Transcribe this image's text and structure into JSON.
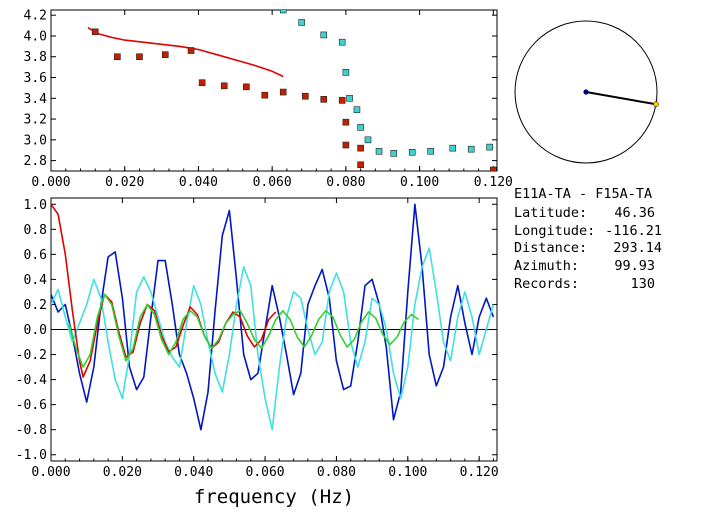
{
  "info": {
    "title": "E11A-TA - F15A-TA",
    "lines": [
      {
        "label": "Latitude:",
        "value": "46.36"
      },
      {
        "label": "Longitude:",
        "value": "-116.21"
      },
      {
        "label": "Distance:",
        "value": "293.14"
      },
      {
        "label": "Azimuth:",
        "value": "99.93"
      },
      {
        "label": "Records:",
        "value": "130"
      }
    ]
  },
  "compass": {
    "azimuth_deg": 99.93,
    "center_color": "#000080",
    "tip_color": "#f0d000"
  },
  "chart_data": [
    {
      "type": "scatter",
      "xlabel": "",
      "ylabel": "",
      "xlim": [
        0.0,
        0.121
      ],
      "ylim": [
        2.7,
        4.25
      ],
      "xticks": [
        "0.000",
        "0.020",
        "0.040",
        "0.060",
        "0.080",
        "0.100",
        "0.120"
      ],
      "yticks": [
        "2.8",
        "3.0",
        "3.2",
        "3.4",
        "3.6",
        "3.8",
        "4.0",
        "4.2"
      ],
      "series": [
        {
          "kind": "line",
          "color": "#e00000",
          "points": [
            [
              0.01,
              4.08
            ],
            [
              0.013,
              4.02
            ],
            [
              0.016,
              3.99
            ],
            [
              0.02,
              3.96
            ],
            [
              0.025,
              3.94
            ],
            [
              0.03,
              3.92
            ],
            [
              0.035,
              3.9
            ],
            [
              0.04,
              3.87
            ],
            [
              0.045,
              3.82
            ],
            [
              0.05,
              3.77
            ],
            [
              0.055,
              3.72
            ],
            [
              0.06,
              3.66
            ],
            [
              0.063,
              3.61
            ]
          ]
        },
        {
          "kind": "markers",
          "color": "#c02000",
          "points": [
            [
              0.012,
              4.04
            ],
            [
              0.018,
              3.8
            ],
            [
              0.024,
              3.8
            ],
            [
              0.031,
              3.82
            ],
            [
              0.038,
              3.86
            ],
            [
              0.041,
              3.55
            ],
            [
              0.047,
              3.52
            ],
            [
              0.053,
              3.51
            ],
            [
              0.058,
              3.43
            ],
            [
              0.063,
              3.46
            ],
            [
              0.069,
              3.42
            ],
            [
              0.074,
              3.39
            ],
            [
              0.079,
              3.38
            ],
            [
              0.08,
              3.17
            ],
            [
              0.08,
              2.95
            ],
            [
              0.084,
              2.92
            ],
            [
              0.084,
              2.76
            ],
            [
              0.12,
              2.71
            ]
          ]
        },
        {
          "kind": "markers",
          "color": "#40d0d0",
          "points": [
            [
              0.063,
              4.25
            ],
            [
              0.068,
              4.13
            ],
            [
              0.074,
              4.01
            ],
            [
              0.079,
              3.94
            ],
            [
              0.08,
              3.65
            ],
            [
              0.081,
              3.4
            ],
            [
              0.083,
              3.29
            ],
            [
              0.084,
              3.12
            ],
            [
              0.086,
              3.0
            ],
            [
              0.089,
              2.89
            ],
            [
              0.093,
              2.87
            ],
            [
              0.098,
              2.88
            ],
            [
              0.103,
              2.89
            ],
            [
              0.109,
              2.92
            ],
            [
              0.114,
              2.91
            ],
            [
              0.119,
              2.93
            ]
          ]
        }
      ]
    },
    {
      "type": "line",
      "xlabel": "frequency (Hz)",
      "ylabel": "",
      "xlim": [
        0.0,
        0.125
      ],
      "ylim": [
        -1.05,
        1.05
      ],
      "xticks": [
        "0.000",
        "0.020",
        "0.040",
        "0.060",
        "0.080",
        "0.100",
        "0.120"
      ],
      "yticks": [
        "1.0",
        "0.8",
        "0.6",
        "0.4",
        "0.2",
        "0.0",
        "-0.2",
        "-0.4",
        "-0.6",
        "-0.8",
        "-1.0"
      ],
      "series": [
        {
          "kind": "line",
          "color": "#0018c0",
          "x": [
            0.0,
            0.002,
            0.004,
            0.006,
            0.008,
            0.01,
            0.012,
            0.014,
            0.016,
            0.018,
            0.02,
            0.022,
            0.024,
            0.026,
            0.028,
            0.03,
            0.032,
            0.034,
            0.036,
            0.038,
            0.04,
            0.042,
            0.044,
            0.046,
            0.048,
            0.05,
            0.052,
            0.054,
            0.056,
            0.058,
            0.06,
            0.062,
            0.064,
            0.066,
            0.068,
            0.07,
            0.072,
            0.074,
            0.076,
            0.078,
            0.08,
            0.082,
            0.084,
            0.086,
            0.088,
            0.09,
            0.092,
            0.094,
            0.096,
            0.098,
            0.1,
            0.102,
            0.104,
            0.106,
            0.108,
            0.11,
            0.112,
            0.114,
            0.116,
            0.118,
            0.12,
            0.122,
            0.124
          ],
          "y": [
            0.28,
            0.14,
            0.2,
            -0.05,
            -0.35,
            -0.58,
            -0.3,
            0.2,
            0.58,
            0.62,
            0.25,
            -0.3,
            -0.48,
            -0.38,
            0.1,
            0.55,
            0.55,
            0.2,
            -0.2,
            -0.35,
            -0.55,
            -0.8,
            -0.5,
            0.15,
            0.75,
            0.95,
            0.4,
            -0.2,
            -0.4,
            -0.35,
            0.0,
            0.35,
            0.1,
            -0.2,
            -0.52,
            -0.35,
            0.2,
            0.35,
            0.48,
            0.25,
            -0.25,
            -0.48,
            -0.45,
            -0.1,
            0.35,
            0.4,
            0.2,
            -0.15,
            -0.72,
            -0.5,
            0.3,
            1.0,
            0.5,
            -0.2,
            -0.45,
            -0.3,
            0.1,
            0.35,
            0.05,
            -0.2,
            0.1,
            0.25,
            0.1
          ]
        },
        {
          "kind": "line",
          "color": "#40e0e0",
          "x": [
            0.0,
            0.002,
            0.004,
            0.006,
            0.008,
            0.01,
            0.012,
            0.014,
            0.016,
            0.018,
            0.02,
            0.022,
            0.024,
            0.026,
            0.028,
            0.03,
            0.032,
            0.034,
            0.036,
            0.038,
            0.04,
            0.042,
            0.044,
            0.046,
            0.048,
            0.05,
            0.052,
            0.054,
            0.056,
            0.058,
            0.06,
            0.062,
            0.064,
            0.066,
            0.068,
            0.07,
            0.072,
            0.074,
            0.076,
            0.078,
            0.08,
            0.082,
            0.084,
            0.086,
            0.088,
            0.09,
            0.092,
            0.094,
            0.096,
            0.098,
            0.1,
            0.102,
            0.104,
            0.106,
            0.108,
            0.11,
            0.112,
            0.114,
            0.116,
            0.118,
            0.12,
            0.122,
            0.124
          ],
          "y": [
            0.2,
            0.32,
            0.1,
            -0.1,
            0.05,
            0.2,
            0.4,
            0.25,
            -0.1,
            -0.4,
            -0.55,
            -0.2,
            0.3,
            0.42,
            0.3,
            0.1,
            -0.1,
            -0.22,
            -0.3,
            0.05,
            0.35,
            0.2,
            -0.1,
            -0.35,
            -0.5,
            -0.2,
            0.2,
            0.5,
            0.35,
            -0.2,
            -0.55,
            -0.8,
            -0.3,
            0.1,
            0.3,
            0.25,
            0.0,
            -0.2,
            -0.1,
            0.3,
            0.45,
            0.3,
            -0.1,
            -0.3,
            -0.1,
            0.25,
            0.2,
            0.0,
            -0.35,
            -0.55,
            -0.3,
            0.2,
            0.5,
            0.65,
            0.3,
            -0.1,
            -0.25,
            0.1,
            0.3,
            0.1,
            -0.2,
            0.0,
            0.2
          ]
        },
        {
          "kind": "line",
          "color": "#e00000",
          "x": [
            0.0,
            0.002,
            0.004,
            0.006,
            0.008,
            0.009,
            0.011,
            0.013,
            0.015,
            0.017,
            0.019,
            0.021,
            0.023,
            0.025,
            0.027,
            0.029,
            0.031,
            0.033,
            0.035,
            0.037,
            0.039,
            0.041,
            0.043,
            0.045,
            0.047,
            0.049,
            0.051,
            0.053,
            0.055,
            0.057,
            0.059,
            0.061,
            0.063
          ],
          "y": [
            1.0,
            0.92,
            0.6,
            0.15,
            -0.25,
            -0.38,
            -0.25,
            0.05,
            0.28,
            0.22,
            -0.02,
            -0.22,
            -0.18,
            0.05,
            0.2,
            0.15,
            -0.05,
            -0.18,
            -0.14,
            0.03,
            0.18,
            0.12,
            -0.05,
            -0.15,
            -0.1,
            0.05,
            0.14,
            0.1,
            -0.05,
            -0.14,
            -0.08,
            0.08,
            0.14
          ]
        },
        {
          "kind": "line",
          "color": "#30d030",
          "x": [
            0.005,
            0.007,
            0.009,
            0.011,
            0.013,
            0.015,
            0.017,
            0.019,
            0.021,
            0.023,
            0.025,
            0.027,
            0.029,
            0.031,
            0.033,
            0.035,
            0.037,
            0.039,
            0.041,
            0.043,
            0.045,
            0.047,
            0.049,
            0.051,
            0.053,
            0.055,
            0.057,
            0.059,
            0.061,
            0.063,
            0.065,
            0.067,
            0.069,
            0.071,
            0.073,
            0.075,
            0.077,
            0.079,
            0.081,
            0.083,
            0.085,
            0.087,
            0.089,
            0.091,
            0.093,
            0.095,
            0.097,
            0.099,
            0.101,
            0.103
          ],
          "y": [
            0.05,
            -0.15,
            -0.3,
            -0.2,
            0.1,
            0.28,
            0.2,
            -0.05,
            -0.25,
            -0.15,
            0.1,
            0.2,
            0.12,
            -0.08,
            -0.2,
            -0.1,
            0.08,
            0.15,
            0.1,
            -0.05,
            -0.15,
            -0.08,
            0.05,
            0.12,
            0.15,
            0.05,
            -0.08,
            -0.15,
            -0.05,
            0.08,
            0.15,
            0.08,
            -0.06,
            -0.14,
            -0.05,
            0.08,
            0.15,
            0.1,
            -0.04,
            -0.14,
            -0.08,
            0.06,
            0.14,
            0.09,
            -0.04,
            -0.12,
            -0.06,
            0.06,
            0.12,
            0.08
          ]
        }
      ]
    }
  ]
}
